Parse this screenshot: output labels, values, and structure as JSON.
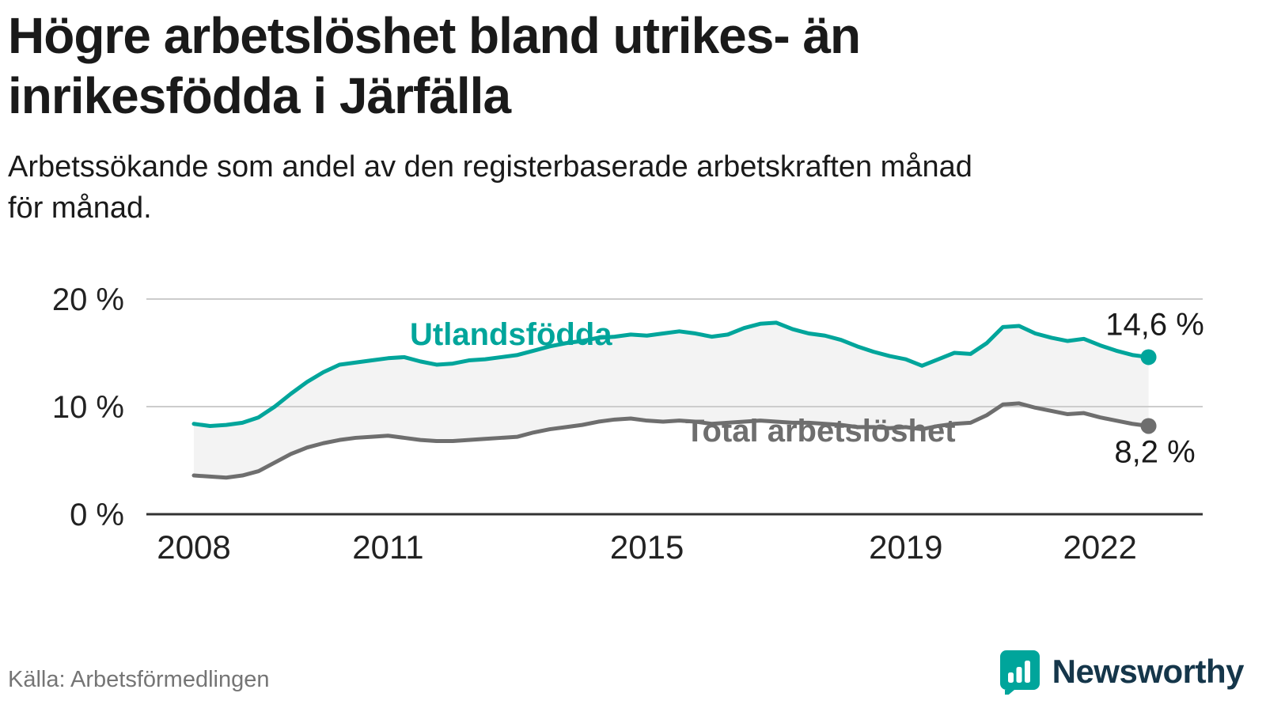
{
  "header": {
    "title_lines": [
      "Högre arbetslöshet bland utrikes- än",
      "inrikesfödda i Järfälla"
    ],
    "subtitle_lines": [
      "Arbetssökande som andel av den registerbaserade arbetskraften månad",
      "för månad."
    ]
  },
  "footer": {
    "source": "Källa: Arbetsförmedlingen",
    "brand": "Newsworthy"
  },
  "colors": {
    "teal": "#00a59b",
    "gray": "#6e6e6e",
    "band": "#f3f3f3",
    "grid": "#cccccc",
    "axis": "#333333",
    "tick_text": "#222222",
    "value_text": "#1a1a1a",
    "brand_icon": "#00a59b"
  },
  "chart_data": {
    "type": "line",
    "title": "Högre arbetslöshet bland utrikes- än inrikesfödda i Järfälla",
    "subtitle": "Arbetssökande som andel av den registerbaserade arbetskraften månad för månad.",
    "xlabel": "",
    "ylabel": "",
    "ylim": [
      0,
      21.5
    ],
    "grid": "horizontal",
    "legend_position": "inline",
    "yticks": [
      {
        "value": 0,
        "label": "0 %"
      },
      {
        "value": 10,
        "label": "10 %"
      },
      {
        "value": 20,
        "label": "20 %"
      }
    ],
    "xticks": [
      {
        "value": 2008,
        "label": "2008"
      },
      {
        "value": 2011,
        "label": "2011"
      },
      {
        "value": 2015,
        "label": "2015"
      },
      {
        "value": 2019,
        "label": "2019"
      },
      {
        "value": 2022,
        "label": "2022"
      }
    ],
    "x": [
      2008,
      2008.25,
      2008.5,
      2008.75,
      2009,
      2009.25,
      2009.5,
      2009.75,
      2010,
      2010.25,
      2010.5,
      2010.75,
      2011,
      2011.25,
      2011.5,
      2011.75,
      2012,
      2012.25,
      2012.5,
      2012.75,
      2013,
      2013.25,
      2013.5,
      2013.75,
      2014,
      2014.25,
      2014.5,
      2014.75,
      2015,
      2015.25,
      2015.5,
      2015.75,
      2016,
      2016.25,
      2016.5,
      2016.75,
      2017,
      2017.25,
      2017.5,
      2017.75,
      2018,
      2018.25,
      2018.5,
      2018.75,
      2019,
      2019.25,
      2019.5,
      2019.75,
      2020,
      2020.25,
      2020.5,
      2020.75,
      2021,
      2021.25,
      2021.5,
      2021.75,
      2022,
      2022.25,
      2022.5,
      2022.75
    ],
    "series": [
      {
        "name": "Utlandsfödda",
        "color": "#00a59b",
        "end_label": "14,6 %",
        "end_value": 14.6,
        "values": [
          8.4,
          8.2,
          8.3,
          8.5,
          9.0,
          10.0,
          11.2,
          12.3,
          13.2,
          13.9,
          14.1,
          14.3,
          14.5,
          14.6,
          14.2,
          13.9,
          14.0,
          14.3,
          14.4,
          14.6,
          14.8,
          15.2,
          15.6,
          15.9,
          16.1,
          16.4,
          16.5,
          16.7,
          16.6,
          16.8,
          17.0,
          16.8,
          16.5,
          16.7,
          17.3,
          17.7,
          17.8,
          17.2,
          16.8,
          16.6,
          16.2,
          15.6,
          15.1,
          14.7,
          14.4,
          13.8,
          14.4,
          15.0,
          14.9,
          15.9,
          17.4,
          17.5,
          16.8,
          16.4,
          16.1,
          16.3,
          15.7,
          15.2,
          14.8,
          14.6
        ]
      },
      {
        "name": "Total arbetslöshet",
        "color": "#6e6e6e",
        "end_label": "8,2 %",
        "end_value": 8.2,
        "values": [
          3.6,
          3.5,
          3.4,
          3.6,
          4.0,
          4.8,
          5.6,
          6.2,
          6.6,
          6.9,
          7.1,
          7.2,
          7.3,
          7.1,
          6.9,
          6.8,
          6.8,
          6.9,
          7.0,
          7.1,
          7.2,
          7.6,
          7.9,
          8.1,
          8.3,
          8.6,
          8.8,
          8.9,
          8.7,
          8.6,
          8.7,
          8.6,
          8.4,
          8.5,
          8.6,
          8.7,
          8.6,
          8.5,
          8.5,
          8.4,
          8.3,
          8.1,
          8.1,
          8.0,
          8.1,
          7.9,
          8.2,
          8.4,
          8.5,
          9.2,
          10.2,
          10.3,
          9.9,
          9.6,
          9.3,
          9.4,
          9.0,
          8.7,
          8.4,
          8.2
        ]
      }
    ],
    "band_between_series": true
  }
}
